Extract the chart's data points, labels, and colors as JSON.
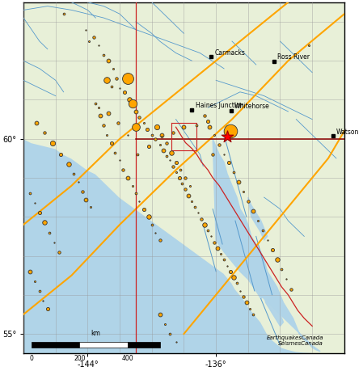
{
  "lon_min": -148,
  "lon_max": -128,
  "lat_min": 54.5,
  "lat_max": 63.5,
  "land_color": "#e8f0d8",
  "ocean_color": "#b0d4e8",
  "grid_color": "#999999",
  "grid_lw": 0.4,
  "river_color": "#5599cc",
  "fjord_color": "#5599cc",
  "cities": [
    {
      "name": "Carmacks",
      "lon": -136.3,
      "lat": 62.1
    },
    {
      "name": "Ross River",
      "lon": -132.4,
      "lat": 61.99
    },
    {
      "name": "Haines Junction",
      "lon": -137.5,
      "lat": 60.75
    },
    {
      "name": "Whitehorse",
      "lon": -135.05,
      "lat": 60.72
    },
    {
      "name": "Watson",
      "lon": -128.7,
      "lat": 60.07
    }
  ],
  "eq_color": "#ffa500",
  "eq_edge_color": "#333333",
  "eq_edge_lw": 0.6,
  "star_color": "#ff0000",
  "earthquakes": [
    {
      "lon": -145.5,
      "lat": 63.2,
      "mag": 5.2
    },
    {
      "lon": -144.1,
      "lat": 62.8,
      "mag": 5.0
    },
    {
      "lon": -143.6,
      "lat": 62.6,
      "mag": 5.3
    },
    {
      "lon": -143.9,
      "lat": 62.5,
      "mag": 5.1
    },
    {
      "lon": -143.3,
      "lat": 62.4,
      "mag": 5.0
    },
    {
      "lon": -143.0,
      "lat": 62.15,
      "mag": 5.2
    },
    {
      "lon": -142.7,
      "lat": 62.0,
      "mag": 5.5
    },
    {
      "lon": -142.4,
      "lat": 61.8,
      "mag": 5.1
    },
    {
      "lon": -142.2,
      "lat": 61.55,
      "mag": 5.3
    },
    {
      "lon": -142.8,
      "lat": 61.5,
      "mag": 5.9
    },
    {
      "lon": -142.5,
      "lat": 61.35,
      "mag": 5.2
    },
    {
      "lon": -142.0,
      "lat": 61.3,
      "mag": 5.0
    },
    {
      "lon": -141.7,
      "lat": 61.2,
      "mag": 5.4
    },
    {
      "lon": -141.4,
      "lat": 61.0,
      "mag": 5.6
    },
    {
      "lon": -141.2,
      "lat": 60.9,
      "mag": 6.3
    },
    {
      "lon": -141.0,
      "lat": 60.7,
      "mag": 5.5
    },
    {
      "lon": -140.8,
      "lat": 60.55,
      "mag": 5.3
    },
    {
      "lon": -140.5,
      "lat": 60.4,
      "mag": 5.1
    },
    {
      "lon": -140.3,
      "lat": 60.25,
      "mag": 5.4
    },
    {
      "lon": -140.0,
      "lat": 60.1,
      "mag": 5.2
    },
    {
      "lon": -139.8,
      "lat": 60.0,
      "mag": 5.3
    },
    {
      "lon": -139.5,
      "lat": 59.85,
      "mag": 5.1
    },
    {
      "lon": -139.3,
      "lat": 59.7,
      "mag": 5.5
    },
    {
      "lon": -139.1,
      "lat": 59.55,
      "mag": 5.2
    },
    {
      "lon": -138.9,
      "lat": 59.45,
      "mag": 5.0
    },
    {
      "lon": -138.7,
      "lat": 59.3,
      "mag": 5.3
    },
    {
      "lon": -138.5,
      "lat": 59.15,
      "mag": 5.1
    },
    {
      "lon": -138.3,
      "lat": 59.0,
      "mag": 5.4
    },
    {
      "lon": -138.1,
      "lat": 58.85,
      "mag": 5.2
    },
    {
      "lon": -137.9,
      "lat": 58.7,
      "mag": 5.3
    },
    {
      "lon": -137.7,
      "lat": 58.55,
      "mag": 5.5
    },
    {
      "lon": -137.5,
      "lat": 58.4,
      "mag": 5.1
    },
    {
      "lon": -137.3,
      "lat": 58.25,
      "mag": 5.2
    },
    {
      "lon": -137.1,
      "lat": 58.1,
      "mag": 5.0
    },
    {
      "lon": -136.9,
      "lat": 57.95,
      "mag": 5.3
    },
    {
      "lon": -136.7,
      "lat": 57.8,
      "mag": 5.6
    },
    {
      "lon": -136.5,
      "lat": 57.65,
      "mag": 5.2
    },
    {
      "lon": -136.3,
      "lat": 57.5,
      "mag": 5.0
    },
    {
      "lon": -136.1,
      "lat": 57.35,
      "mag": 5.3
    },
    {
      "lon": -135.9,
      "lat": 57.2,
      "mag": 5.5
    },
    {
      "lon": -135.7,
      "lat": 57.05,
      "mag": 5.1
    },
    {
      "lon": -135.5,
      "lat": 56.9,
      "mag": 5.2
    },
    {
      "lon": -135.3,
      "lat": 56.75,
      "mag": 5.0
    },
    {
      "lon": -135.1,
      "lat": 56.6,
      "mag": 5.4
    },
    {
      "lon": -134.9,
      "lat": 56.45,
      "mag": 5.6
    },
    {
      "lon": -134.7,
      "lat": 56.3,
      "mag": 5.2
    },
    {
      "lon": -134.5,
      "lat": 56.1,
      "mag": 5.0
    },
    {
      "lon": -134.3,
      "lat": 55.95,
      "mag": 5.3
    },
    {
      "lon": -134.1,
      "lat": 55.8,
      "mag": 5.5
    },
    {
      "lon": -133.9,
      "lat": 55.65,
      "mag": 5.1
    },
    {
      "lon": -133.7,
      "lat": 55.5,
      "mag": 5.2
    },
    {
      "lon": -143.5,
      "lat": 60.9,
      "mag": 5.2
    },
    {
      "lon": -143.2,
      "lat": 60.6,
      "mag": 5.5
    },
    {
      "lon": -143.0,
      "lat": 60.35,
      "mag": 5.3
    },
    {
      "lon": -142.8,
      "lat": 60.1,
      "mag": 5.1
    },
    {
      "lon": -142.5,
      "lat": 59.9,
      "mag": 5.4
    },
    {
      "lon": -142.3,
      "lat": 59.65,
      "mag": 5.2
    },
    {
      "lon": -142.0,
      "lat": 59.45,
      "mag": 5.0
    },
    {
      "lon": -141.8,
      "lat": 59.2,
      "mag": 5.3
    },
    {
      "lon": -141.5,
      "lat": 59.0,
      "mag": 5.5
    },
    {
      "lon": -141.2,
      "lat": 58.8,
      "mag": 5.1
    },
    {
      "lon": -141.0,
      "lat": 58.6,
      "mag": 5.2
    },
    {
      "lon": -140.8,
      "lat": 58.4,
      "mag": 5.0
    },
    {
      "lon": -140.5,
      "lat": 58.2,
      "mag": 5.4
    },
    {
      "lon": -140.2,
      "lat": 58.0,
      "mag": 5.6
    },
    {
      "lon": -140.0,
      "lat": 57.8,
      "mag": 5.2
    },
    {
      "lon": -139.8,
      "lat": 57.6,
      "mag": 5.0
    },
    {
      "lon": -139.5,
      "lat": 57.4,
      "mag": 5.3
    },
    {
      "lon": -147.2,
      "lat": 60.4,
      "mag": 5.5
    },
    {
      "lon": -146.7,
      "lat": 60.15,
      "mag": 5.3
    },
    {
      "lon": -146.2,
      "lat": 59.9,
      "mag": 5.7
    },
    {
      "lon": -145.7,
      "lat": 59.6,
      "mag": 5.4
    },
    {
      "lon": -145.2,
      "lat": 59.35,
      "mag": 5.6
    },
    {
      "lon": -144.9,
      "lat": 59.1,
      "mag": 5.2
    },
    {
      "lon": -144.6,
      "lat": 58.9,
      "mag": 5.0
    },
    {
      "lon": -144.3,
      "lat": 58.65,
      "mag": 5.3
    },
    {
      "lon": -144.1,
      "lat": 58.45,
      "mag": 5.5
    },
    {
      "lon": -143.8,
      "lat": 58.25,
      "mag": 5.1
    },
    {
      "lon": -147.6,
      "lat": 58.6,
      "mag": 5.2
    },
    {
      "lon": -147.3,
      "lat": 58.35,
      "mag": 5.0
    },
    {
      "lon": -147.0,
      "lat": 58.1,
      "mag": 5.4
    },
    {
      "lon": -146.7,
      "lat": 57.85,
      "mag": 5.6
    },
    {
      "lon": -146.4,
      "lat": 57.6,
      "mag": 5.2
    },
    {
      "lon": -146.1,
      "lat": 57.35,
      "mag": 5.0
    },
    {
      "lon": -145.8,
      "lat": 57.1,
      "mag": 5.3
    },
    {
      "lon": -147.6,
      "lat": 56.6,
      "mag": 5.5
    },
    {
      "lon": -147.3,
      "lat": 56.35,
      "mag": 5.1
    },
    {
      "lon": -147.0,
      "lat": 56.1,
      "mag": 5.2
    },
    {
      "lon": -146.8,
      "lat": 55.85,
      "mag": 5.0
    },
    {
      "lon": -146.5,
      "lat": 55.65,
      "mag": 5.4
    },
    {
      "lon": -141.5,
      "lat": 61.55,
      "mag": 6.8
    },
    {
      "lon": -139.7,
      "lat": 60.3,
      "mag": 5.7
    },
    {
      "lon": -139.4,
      "lat": 60.1,
      "mag": 5.5
    },
    {
      "lon": -139.1,
      "lat": 59.9,
      "mag": 5.3
    },
    {
      "lon": -138.8,
      "lat": 59.65,
      "mag": 5.6
    },
    {
      "lon": -138.5,
      "lat": 59.4,
      "mag": 5.4
    },
    {
      "lon": -138.2,
      "lat": 59.2,
      "mag": 5.2
    },
    {
      "lon": -137.9,
      "lat": 59.0,
      "mag": 5.3
    },
    {
      "lon": -137.6,
      "lat": 58.8,
      "mag": 5.1
    },
    {
      "lon": -130.2,
      "lat": 62.4,
      "mag": 5.1
    },
    {
      "lon": -136.7,
      "lat": 60.6,
      "mag": 5.3
    },
    {
      "lon": -136.4,
      "lat": 60.3,
      "mag": 5.5
    },
    {
      "lon": -136.1,
      "lat": 60.1,
      "mag": 5.1
    },
    {
      "lon": -135.8,
      "lat": 59.85,
      "mag": 5.3
    },
    {
      "lon": -135.5,
      "lat": 59.6,
      "mag": 5.0
    },
    {
      "lon": -135.2,
      "lat": 59.4,
      "mag": 5.4
    },
    {
      "lon": -134.9,
      "lat": 59.15,
      "mag": 5.2
    },
    {
      "lon": -134.6,
      "lat": 58.9,
      "mag": 5.5
    },
    {
      "lon": -134.3,
      "lat": 58.65,
      "mag": 5.1
    },
    {
      "lon": -134.0,
      "lat": 58.4,
      "mag": 5.3
    },
    {
      "lon": -133.7,
      "lat": 58.15,
      "mag": 5.5
    },
    {
      "lon": -133.4,
      "lat": 57.9,
      "mag": 5.1
    },
    {
      "lon": -133.1,
      "lat": 57.65,
      "mag": 5.2
    },
    {
      "lon": -132.8,
      "lat": 57.4,
      "mag": 5.0
    },
    {
      "lon": -132.5,
      "lat": 57.15,
      "mag": 5.4
    },
    {
      "lon": -132.2,
      "lat": 56.9,
      "mag": 5.6
    },
    {
      "lon": -131.9,
      "lat": 56.65,
      "mag": 5.2
    },
    {
      "lon": -131.6,
      "lat": 56.4,
      "mag": 5.0
    },
    {
      "lon": -131.3,
      "lat": 56.15,
      "mag": 5.3
    },
    {
      "lon": -141.0,
      "lat": 60.3,
      "mag": 6.2
    },
    {
      "lon": -139.5,
      "lat": 55.5,
      "mag": 5.5
    },
    {
      "lon": -139.2,
      "lat": 55.25,
      "mag": 5.1
    },
    {
      "lon": -138.9,
      "lat": 55.0,
      "mag": 5.2
    },
    {
      "lon": -138.5,
      "lat": 54.8,
      "mag": 5.0
    },
    {
      "lon": -135.1,
      "lat": 60.2,
      "mag": 7.2
    },
    {
      "lon": -136.2,
      "lat": 59.6,
      "mag": 5.3
    },
    {
      "lon": -136.5,
      "lat": 60.45,
      "mag": 5.4
    },
    {
      "lon": -137.2,
      "lat": 60.35,
      "mag": 5.2
    },
    {
      "lon": -138.0,
      "lat": 60.3,
      "mag": 5.5
    },
    {
      "lon": -138.7,
      "lat": 60.15,
      "mag": 5.3
    },
    {
      "lon": -139.4,
      "lat": 60.05,
      "mag": 5.1
    },
    {
      "lon": -140.2,
      "lat": 59.8,
      "mag": 5.4
    },
    {
      "lon": -140.9,
      "lat": 59.6,
      "mag": 5.2
    },
    {
      "lon": -141.5,
      "lat": 60.1,
      "mag": 5.0
    },
    {
      "lon": -142.1,
      "lat": 60.4,
      "mag": 5.3
    },
    {
      "lon": -142.7,
      "lat": 60.65,
      "mag": 5.5
    },
    {
      "lon": -143.3,
      "lat": 60.8,
      "mag": 5.1
    }
  ],
  "special_event": {
    "lon": -135.3,
    "lat": 60.05,
    "mag": 7.5
  },
  "fault_color": "#ffa500",
  "fault_lw": 1.5,
  "border_red_color": "#cc2222",
  "border_dark_color": "#8b0000"
}
